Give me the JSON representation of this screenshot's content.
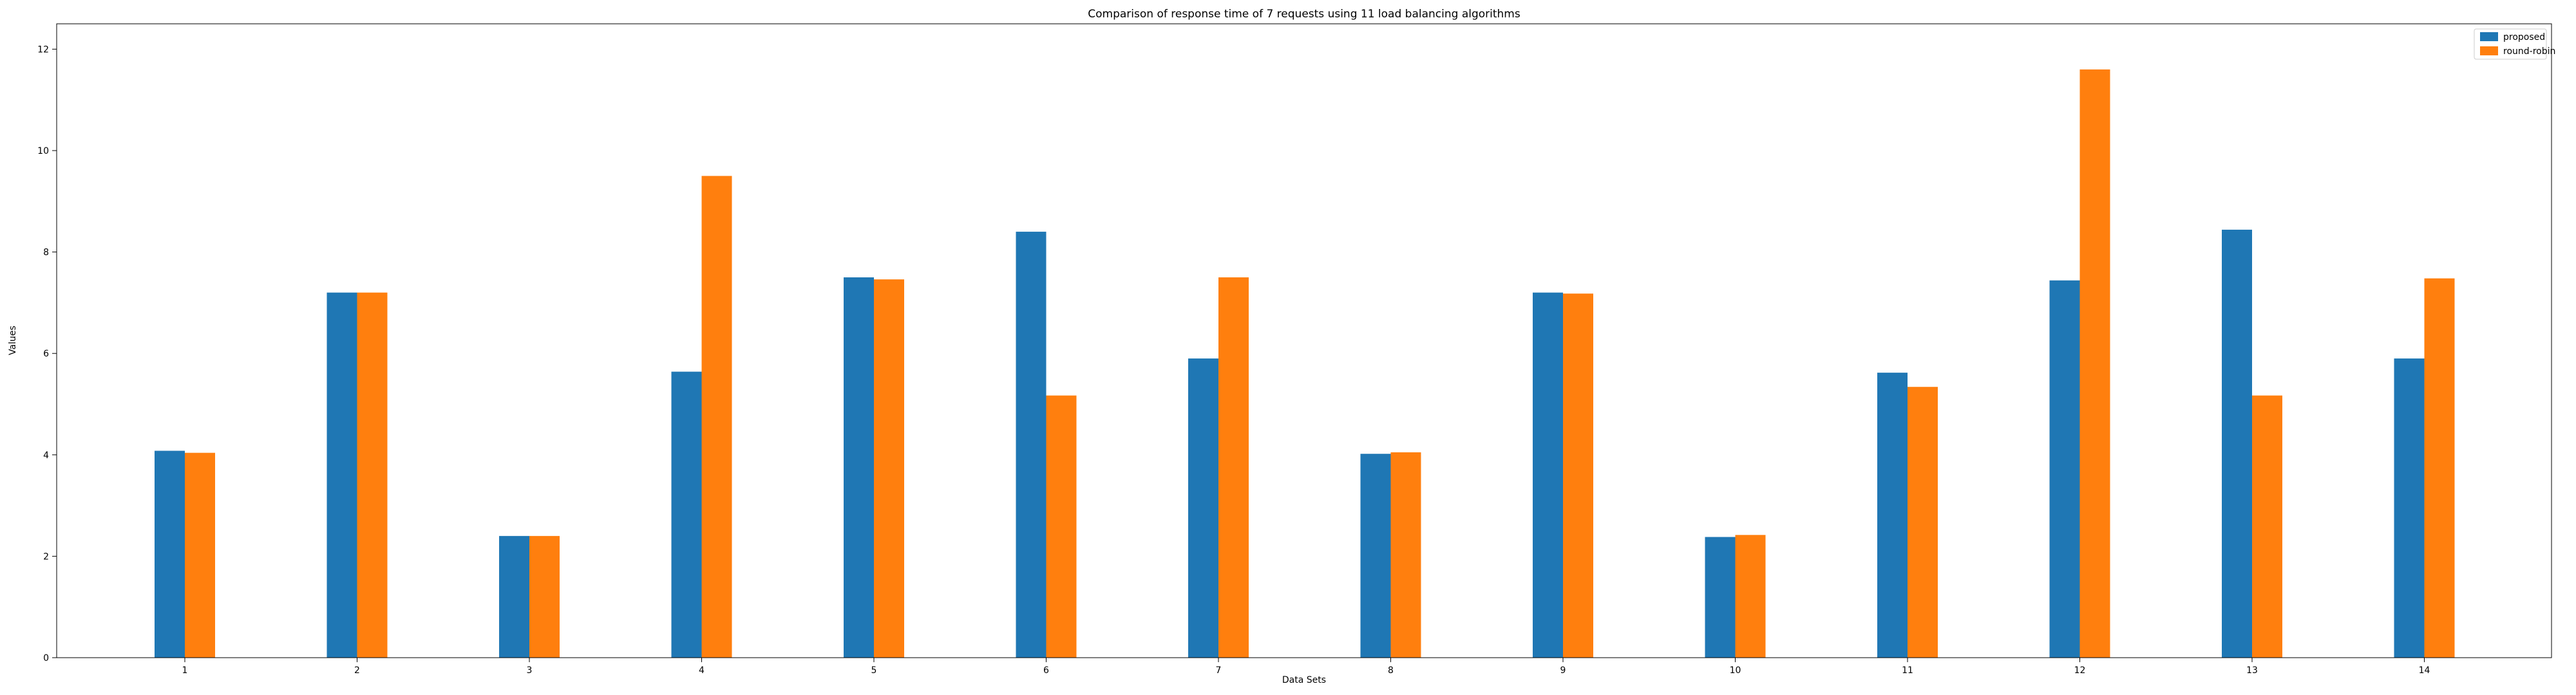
{
  "chart_data": {
    "type": "bar",
    "title": "Comparison of response time of 7 requests using 11 load balancing algorithms",
    "xlabel": "Data Sets",
    "ylabel": "Values",
    "categories": [
      "1",
      "2",
      "3",
      "4",
      "5",
      "6",
      "7",
      "8",
      "9",
      "10",
      "11",
      "12",
      "13",
      "14"
    ],
    "series": [
      {
        "name": "proposed",
        "color": "#1f77b4",
        "values": [
          4.08,
          7.2,
          2.4,
          5.64,
          7.5,
          8.4,
          5.9,
          4.02,
          7.2,
          2.38,
          5.62,
          7.44,
          8.44,
          5.9
        ]
      },
      {
        "name": "round-robin",
        "color": "#ff7f0e",
        "values": [
          4.04,
          7.2,
          2.4,
          9.5,
          7.46,
          5.17,
          7.5,
          4.05,
          7.18,
          2.42,
          5.34,
          11.6,
          5.17,
          7.48
        ]
      }
    ],
    "ylim": [
      0,
      12.5
    ],
    "yticks": [
      0,
      2,
      4,
      6,
      8,
      10,
      12
    ],
    "grid": false,
    "legend_position": "top-right"
  }
}
